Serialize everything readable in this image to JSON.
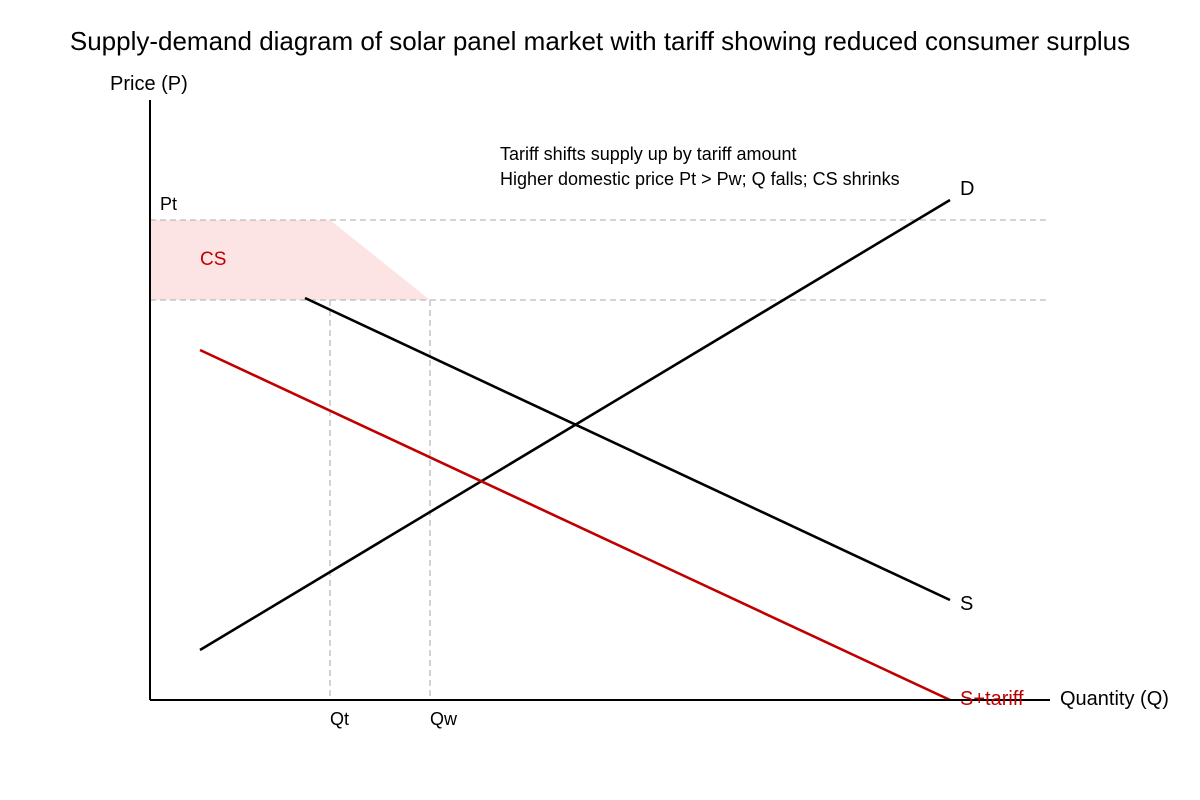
{
  "title": "Supply-demand diagram of solar panel market with tariff showing reduced consumer surplus",
  "axes": {
    "y_label": "Price (P)",
    "x_label": "Quantity (Q)"
  },
  "price_levels": {
    "pt_label": "Pt"
  },
  "quantity_levels": {
    "qt_label": "Qt",
    "qw_label": "Qw"
  },
  "curves": {
    "demand_label": "D",
    "supply_label": "S",
    "supply_tariff_label": "S+tariff"
  },
  "consumer_surplus": {
    "label": "CS"
  },
  "annotation": {
    "line1": "Tariff shifts supply up by tariff amount",
    "line2": "Higher domestic price Pt > Pw; Q falls; CS shrinks"
  },
  "colors": {
    "axis": "#000000",
    "demand": "#000000",
    "supply": "#000000",
    "supply_tariff": "#c00000",
    "cs_fill": "#fde4e4",
    "cs_text": "#c00000",
    "guide": "#bbbbbb",
    "text": "#000000"
  }
}
